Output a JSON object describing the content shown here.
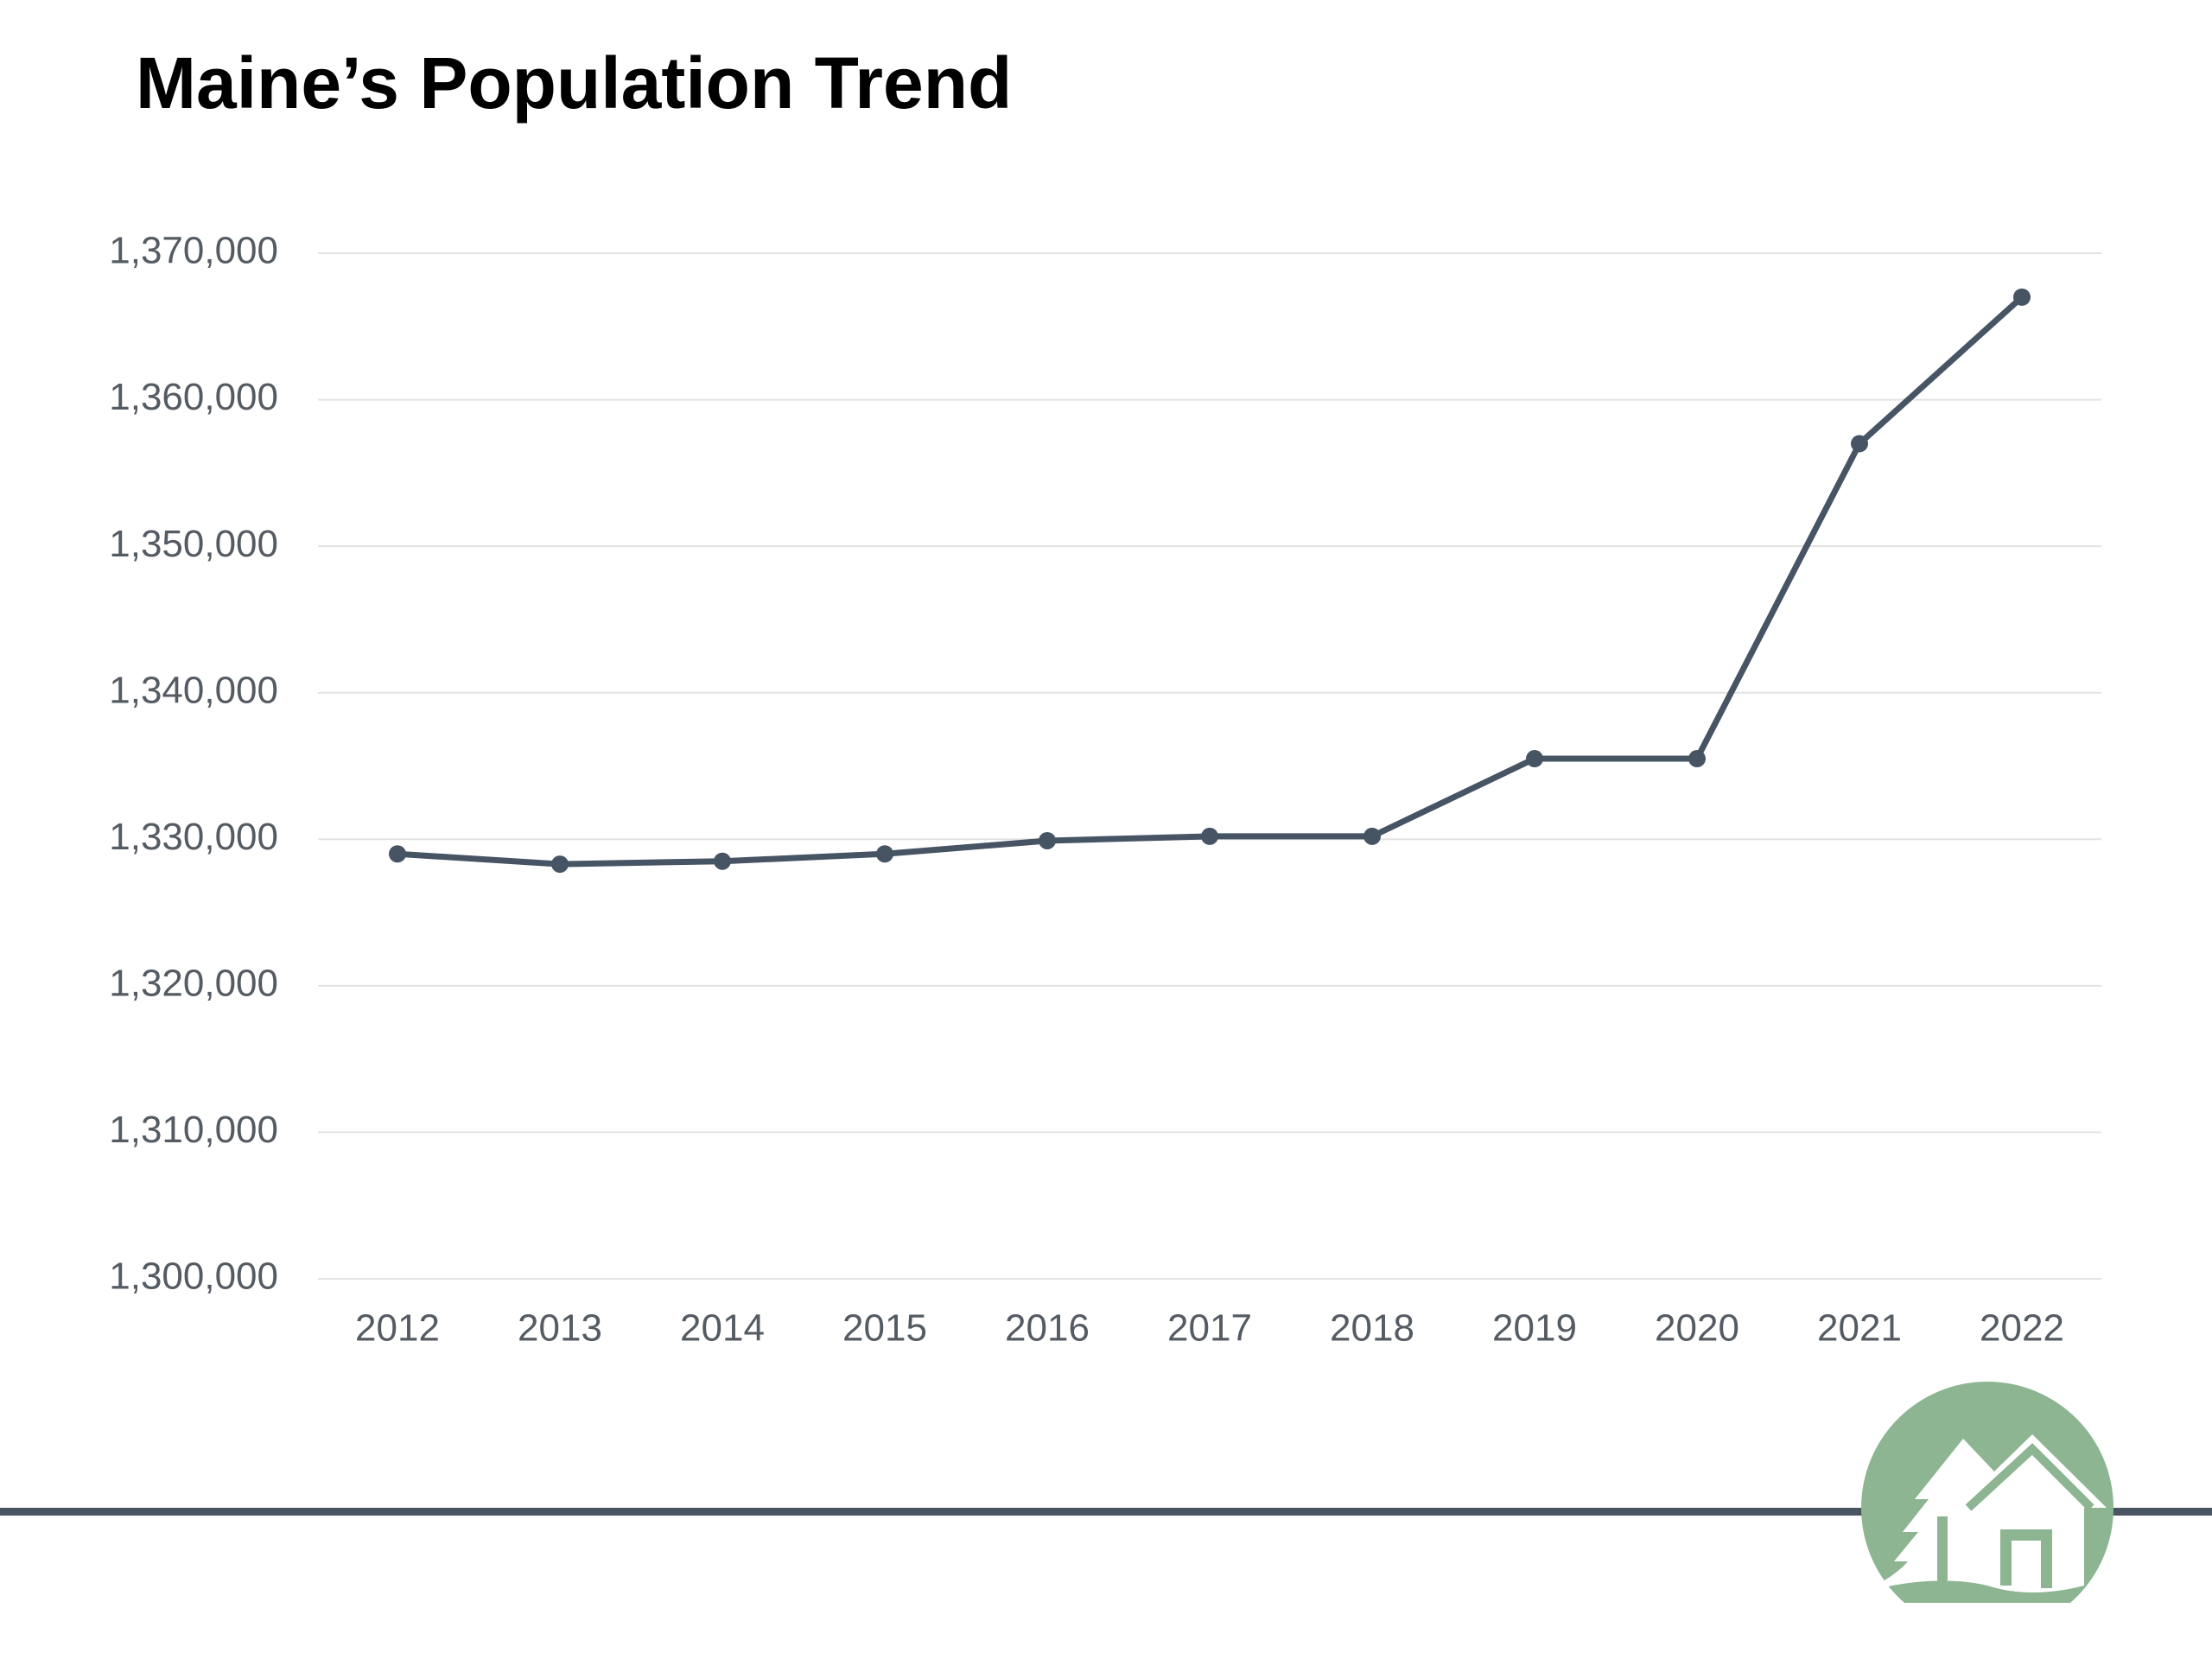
{
  "chart_data": {
    "type": "line",
    "title": "Maine’s Population Trend",
    "xlabel": "",
    "ylabel": "",
    "categories": [
      "2012",
      "2013",
      "2014",
      "2015",
      "2016",
      "2017",
      "2018",
      "2019",
      "2020",
      "2021",
      "2022"
    ],
    "series": [
      {
        "values": [
          1329000,
          1328300,
          1328500,
          1329000,
          1329900,
          1330200,
          1330200,
          1335500,
          1335500,
          1357000,
          1367000
        ]
      }
    ],
    "ylim": [
      1300000,
      1370000
    ],
    "yticks": [
      1300000,
      1310000,
      1320000,
      1330000,
      1340000,
      1350000,
      1360000,
      1370000
    ],
    "ytick_labels": [
      "1,300,000",
      "1,310,000",
      "1,320,000",
      "1,330,000",
      "1,340,000",
      "1,350,000",
      "1,360,000",
      "1,370,000"
    ],
    "grid": true,
    "legend": "none",
    "colors": {
      "line": "#465464",
      "grid": "#e3e3e3",
      "tick_text": "#555b63"
    }
  },
  "logo": {
    "name": "house-tree-logo",
    "colors": {
      "circle": "#8db592",
      "white": "#ffffff"
    }
  },
  "footer": {
    "rule_color": "#4a5563"
  }
}
